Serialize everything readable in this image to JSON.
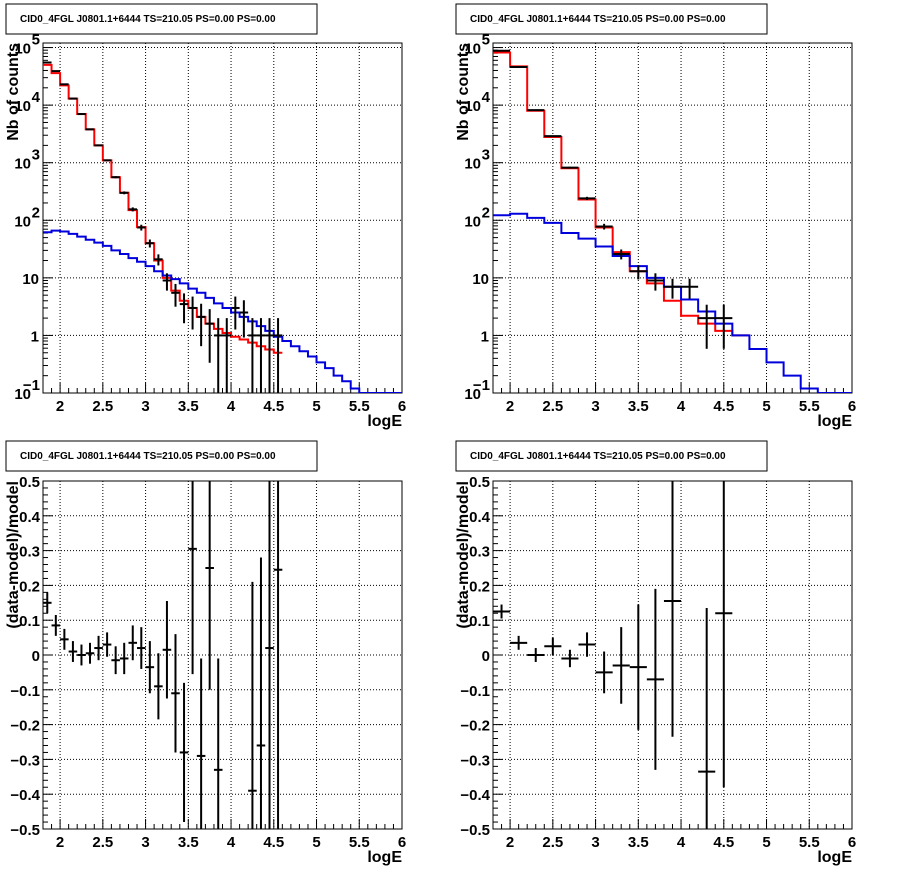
{
  "chart_data": [
    {
      "type": "line",
      "title": "CID0_4FGL J0801.1+6444 TS=210.05 PS=0.00 PS=0.00",
      "xlabel": "logE",
      "ylabel": "Nb of counts",
      "yscale": "log",
      "xlim": [
        1.8,
        6.0
      ],
      "ylim": [
        0.1,
        120000
      ],
      "grid": true,
      "bin_width": 0.1,
      "x_ticks": [
        "2",
        "2.5",
        "3",
        "3.5",
        "4",
        "4.5",
        "5",
        "5.5",
        "6"
      ],
      "y_ticks": [
        {
          "v": 0.1,
          "base": "10",
          "exp": "−1"
        },
        {
          "v": 1,
          "base": "1",
          "exp": ""
        },
        {
          "v": 10,
          "base": "10",
          "exp": ""
        },
        {
          "v": 100,
          "base": "10",
          "exp": "2"
        },
        {
          "v": 1000,
          "base": "10",
          "exp": "3"
        },
        {
          "v": 10000,
          "base": "10",
          "exp": "4"
        },
        {
          "v": 100000,
          "base": "10",
          "exp": "5"
        }
      ],
      "series": [
        {
          "color": "#ff0000",
          "style": "step",
          "x": [
            1.8,
            1.9,
            2.0,
            2.1,
            2.2,
            2.3,
            2.4,
            2.5,
            2.6,
            2.7,
            2.8,
            2.9,
            3.0,
            3.1,
            3.2,
            3.3,
            3.4,
            3.5,
            3.6,
            3.7,
            3.8,
            3.9,
            4.0,
            4.1,
            4.2,
            4.3,
            4.4,
            4.5
          ],
          "y": [
            50000,
            36000,
            22000,
            13000,
            7000,
            3800,
            2000,
            1100,
            560,
            300,
            150,
            76,
            40,
            20,
            10,
            6,
            4,
            3,
            2.1,
            1.6,
            1.3,
            1.1,
            0.95,
            0.85,
            0.75,
            0.65,
            0.57,
            0.5
          ]
        },
        {
          "color": "#0000dd",
          "style": "step",
          "x": [
            1.8,
            1.9,
            2.0,
            2.1,
            2.2,
            2.3,
            2.4,
            2.5,
            2.6,
            2.7,
            2.8,
            2.9,
            3.0,
            3.1,
            3.2,
            3.3,
            3.4,
            3.5,
            3.6,
            3.7,
            3.8,
            3.9,
            4.0,
            4.1,
            4.2,
            4.3,
            4.4,
            4.5,
            4.6,
            4.7,
            4.8,
            4.9,
            5.0,
            5.1,
            5.2,
            5.3,
            5.4,
            5.5,
            5.6,
            5.7,
            5.8,
            5.9
          ],
          "y": [
            62,
            66,
            64,
            58,
            52,
            46,
            41,
            36,
            30,
            26,
            22,
            19,
            16,
            13,
            11,
            9.5,
            8,
            6.5,
            5.5,
            4.5,
            3.6,
            3.0,
            2.5,
            2.1,
            1.75,
            1.45,
            1.2,
            0.95,
            0.8,
            0.65,
            0.53,
            0.43,
            0.34,
            0.27,
            0.2,
            0.16,
            0.12,
            0.1,
            0.1,
            0.1,
            0.1,
            0.1
          ]
        },
        {
          "color": "#000000",
          "style": "points",
          "x": [
            1.85,
            1.95,
            2.05,
            2.15,
            2.25,
            2.35,
            2.45,
            2.55,
            2.65,
            2.75,
            2.85,
            2.95,
            3.05,
            3.15,
            3.25,
            3.35,
            3.45,
            3.55,
            3.65,
            3.75,
            3.85,
            3.95,
            4.05,
            4.15,
            4.25,
            4.35,
            4.45,
            4.55
          ],
          "y": [
            55000,
            39000,
            23000,
            13000,
            7000,
            3800,
            2000,
            1100,
            560,
            300,
            155,
            75,
            40,
            21,
            9,
            5.5,
            3.5,
            3,
            2.1,
            1.6,
            1,
            1,
            3,
            2.5,
            1,
            1,
            1,
            1
          ]
        }
      ]
    },
    {
      "type": "line",
      "title": "CID0_4FGL J0801.1+6444 TS=210.05 PS=0.00 PS=0.00",
      "xlabel": "logE",
      "ylabel": "Nb of counts",
      "yscale": "log",
      "xlim": [
        1.8,
        6.0
      ],
      "ylim": [
        0.1,
        120000
      ],
      "grid": true,
      "bin_width": 0.2,
      "x_ticks": [
        "2",
        "2.5",
        "3",
        "3.5",
        "4",
        "4.5",
        "5",
        "5.5",
        "6"
      ],
      "y_ticks": [
        {
          "v": 0.1,
          "base": "10",
          "exp": "−1"
        },
        {
          "v": 1,
          "base": "1",
          "exp": ""
        },
        {
          "v": 10,
          "base": "10",
          "exp": ""
        },
        {
          "v": 100,
          "base": "10",
          "exp": "2"
        },
        {
          "v": 1000,
          "base": "10",
          "exp": "3"
        },
        {
          "v": 10000,
          "base": "10",
          "exp": "4"
        },
        {
          "v": 100000,
          "base": "10",
          "exp": "5"
        }
      ],
      "series": [
        {
          "color": "#ff0000",
          "style": "step",
          "x": [
            1.8,
            2.0,
            2.2,
            2.4,
            2.6,
            2.8,
            3.0,
            3.2,
            3.4,
            3.6,
            3.8,
            4.0,
            4.2,
            4.4,
            4.6
          ],
          "y": [
            82000,
            47000,
            8000,
            2800,
            800,
            230,
            75,
            28,
            13,
            8,
            4,
            2.2,
            1.6,
            1.2,
            1.0
          ]
        },
        {
          "color": "#0000dd",
          "style": "step",
          "x": [
            1.8,
            2.0,
            2.2,
            2.4,
            2.6,
            2.8,
            3.0,
            3.2,
            3.4,
            3.6,
            3.8,
            4.0,
            4.2,
            4.4,
            4.6,
            4.8,
            5.0,
            5.2,
            5.4,
            5.6,
            5.8
          ],
          "y": [
            122,
            130,
            110,
            90,
            60,
            48,
            35,
            24,
            16,
            10,
            7,
            4.2,
            2.6,
            1.6,
            1.0,
            0.58,
            0.34,
            0.2,
            0.12,
            0.1,
            0.1
          ]
        },
        {
          "color": "#000000",
          "style": "points",
          "x": [
            1.9,
            2.1,
            2.3,
            2.5,
            2.7,
            2.9,
            3.1,
            3.3,
            3.5,
            3.7,
            3.9,
            4.1,
            4.3,
            4.5
          ],
          "y": [
            88000,
            46000,
            8200,
            2900,
            820,
            240,
            78,
            26,
            13,
            9,
            7,
            7,
            2,
            2
          ]
        }
      ]
    },
    {
      "type": "scatter",
      "title": "CID0_4FGL J0801.1+6444 TS=210.05 PS=0.00 PS=0.00",
      "xlabel": "logE",
      "ylabel": "(data-model)/model",
      "yscale": "linear",
      "xlim": [
        1.8,
        6.0
      ],
      "ylim": [
        -0.5,
        0.5
      ],
      "grid": true,
      "bin_width": 0.1,
      "x_ticks": [
        "2",
        "2.5",
        "3",
        "3.5",
        "4",
        "4.5",
        "5",
        "5.5",
        "6"
      ],
      "y_ticks": [
        "−0.5",
        "−0.4",
        "−0.3",
        "−0.2",
        "−0.1",
        "0",
        "0.1",
        "0.2",
        "0.3",
        "0.4",
        "0.5"
      ],
      "points": [
        {
          "x": 1.85,
          "y": 0.15,
          "err": 0.03
        },
        {
          "x": 1.95,
          "y": 0.085,
          "err": 0.03
        },
        {
          "x": 2.05,
          "y": 0.045,
          "err": 0.03
        },
        {
          "x": 2.15,
          "y": 0.01,
          "err": 0.03
        },
        {
          "x": 2.25,
          "y": 0.0,
          "err": 0.03
        },
        {
          "x": 2.35,
          "y": 0.005,
          "err": 0.03
        },
        {
          "x": 2.45,
          "y": 0.02,
          "err": 0.035
        },
        {
          "x": 2.55,
          "y": 0.03,
          "err": 0.035
        },
        {
          "x": 2.65,
          "y": -0.015,
          "err": 0.04
        },
        {
          "x": 2.75,
          "y": -0.01,
          "err": 0.045
        },
        {
          "x": 2.85,
          "y": 0.035,
          "err": 0.05
        },
        {
          "x": 2.95,
          "y": 0.02,
          "err": 0.06
        },
        {
          "x": 3.05,
          "y": -0.035,
          "err": 0.075
        },
        {
          "x": 3.15,
          "y": -0.09,
          "err": 0.095
        },
        {
          "x": 3.25,
          "y": 0.015,
          "err": 0.14
        },
        {
          "x": 3.35,
          "y": -0.11,
          "err": 0.17
        },
        {
          "x": 3.45,
          "y": -0.28,
          "err": 0.2
        },
        {
          "x": 3.55,
          "y": 0.305,
          "err": 0.36
        },
        {
          "x": 3.65,
          "y": -0.29,
          "err": 0.28
        },
        {
          "x": 3.75,
          "y": 0.25,
          "err": 0.35
        },
        {
          "x": 3.85,
          "y": -0.33,
          "err": 0.32
        },
        {
          "x": 4.25,
          "y": -0.39,
          "err": 0.6
        },
        {
          "x": 4.35,
          "y": -0.26,
          "err": 0.54
        },
        {
          "x": 4.45,
          "y": 0.02,
          "err": 0.7
        },
        {
          "x": 4.55,
          "y": 0.245,
          "err": 0.76
        }
      ]
    },
    {
      "type": "scatter",
      "title": "CID0_4FGL J0801.1+6444 TS=210.05 PS=0.00 PS=0.00",
      "xlabel": "logE",
      "ylabel": "(data-model)/model",
      "yscale": "linear",
      "xlim": [
        1.8,
        6.0
      ],
      "ylim": [
        -0.5,
        0.5
      ],
      "grid": true,
      "bin_width": 0.2,
      "x_ticks": [
        "2",
        "2.5",
        "3",
        "3.5",
        "4",
        "4.5",
        "5",
        "5.5",
        "6"
      ],
      "y_ticks": [
        "−0.5",
        "−0.4",
        "−0.3",
        "−0.2",
        "−0.1",
        "0",
        "0.1",
        "0.2",
        "0.3",
        "0.4",
        "0.5"
      ],
      "points": [
        {
          "x": 1.9,
          "y": 0.125,
          "err": 0.02
        },
        {
          "x": 2.1,
          "y": 0.035,
          "err": 0.02
        },
        {
          "x": 2.3,
          "y": 0.0,
          "err": 0.02
        },
        {
          "x": 2.5,
          "y": 0.025,
          "err": 0.025
        },
        {
          "x": 2.7,
          "y": -0.01,
          "err": 0.025
        },
        {
          "x": 2.9,
          "y": 0.03,
          "err": 0.035
        },
        {
          "x": 3.1,
          "y": -0.05,
          "err": 0.06
        },
        {
          "x": 3.3,
          "y": -0.03,
          "err": 0.11
        },
        {
          "x": 3.5,
          "y": -0.035,
          "err": 0.18
        },
        {
          "x": 3.7,
          "y": -0.07,
          "err": 0.26
        },
        {
          "x": 3.9,
          "y": 0.155,
          "err": 0.39
        },
        {
          "x": 4.3,
          "y": -0.335,
          "err": 0.47
        },
        {
          "x": 4.5,
          "y": 0.12,
          "err": 0.5
        }
      ]
    }
  ]
}
